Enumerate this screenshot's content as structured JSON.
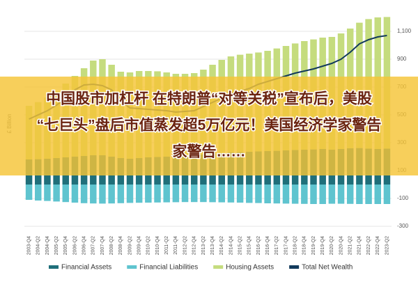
{
  "chart_data": {
    "type": "stacked-bar-line",
    "y_label": "£ Billion",
    "categories": [
      "2003-Q4",
      "2004-Q2",
      "2004-Q4",
      "2005-Q2",
      "2005-Q4",
      "2006-Q2",
      "2006-Q4",
      "2007-Q2",
      "2007-Q4",
      "2008-Q2",
      "2008-Q4",
      "2009-Q2",
      "2009-Q4",
      "2010-Q2",
      "2010-Q4",
      "2011-Q2",
      "2011-Q4",
      "2012-Q2",
      "2012-Q4",
      "2013-Q2",
      "2013-Q4",
      "2014-Q2",
      "2014-Q4",
      "2015-Q2",
      "2015-Q4",
      "2016-Q2",
      "2016-Q4",
      "2017-Q2",
      "2017-Q4",
      "2018-Q2",
      "2018-Q4",
      "2019-Q2",
      "2019-Q4",
      "2020-Q2",
      "2020-Q4",
      "2021-Q2",
      "2021-Q4",
      "2022-Q2",
      "2022-Q4",
      "2023-Q2"
    ],
    "series": [
      {
        "name": "Financial Assets",
        "color": "#1f6f7a",
        "kind": "bar",
        "values": [
          180,
          182,
          185,
          190,
          195,
          200,
          205,
          210,
          210,
          200,
          190,
          185,
          190,
          195,
          198,
          200,
          200,
          205,
          210,
          215,
          220,
          225,
          230,
          232,
          235,
          238,
          240,
          242,
          245,
          248,
          250,
          252,
          255,
          250,
          255,
          260,
          262,
          258,
          255,
          258
        ]
      },
      {
        "name": "Financial Liabilities",
        "color": "#5fc4cf",
        "kind": "bar",
        "values": [
          -110,
          -115,
          -118,
          -122,
          -126,
          -130,
          -134,
          -136,
          -137,
          -136,
          -134,
          -132,
          -131,
          -130,
          -129,
          -128,
          -127,
          -126,
          -126,
          -126,
          -127,
          -128,
          -129,
          -130,
          -132,
          -133,
          -135,
          -136,
          -137,
          -138,
          -139,
          -140,
          -140,
          -138,
          -138,
          -139,
          -140,
          -140,
          -140,
          -140
        ]
      },
      {
        "name": "Housing Assets",
        "color": "#c5dc7e",
        "kind": "bar",
        "values": [
          385,
          410,
          440,
          480,
          530,
          580,
          630,
          680,
          690,
          660,
          620,
          620,
          625,
          620,
          615,
          605,
          595,
          590,
          590,
          610,
          640,
          670,
          690,
          700,
          705,
          710,
          720,
          735,
          750,
          765,
          780,
          790,
          800,
          810,
          830,
          860,
          900,
          930,
          945,
          945
        ]
      },
      {
        "name": "Total Net Wealth",
        "color": "#123a5c",
        "kind": "line",
        "values": [
          470,
          500,
          530,
          570,
          620,
          680,
          715,
          720,
          710,
          680,
          600,
          550,
          545,
          540,
          535,
          530,
          520,
          525,
          530,
          560,
          590,
          620,
          650,
          670,
          690,
          720,
          740,
          760,
          780,
          800,
          815,
          830,
          850,
          870,
          900,
          950,
          1010,
          1040,
          1060,
          1070
        ]
      }
    ],
    "ylim": [
      -350,
      1225
    ],
    "yticks": [
      -300,
      -100,
      100,
      300,
      500,
      700,
      900,
      {
        "value": 1100,
        "label": "1,100"
      }
    ],
    "grid": true
  },
  "overlay": {
    "lines": [
      "中国股市加杠杆 在特朗普“对等关税”宣布后，美股",
      "“七巨头”盘后市值蒸发超5万亿元！美国经济学家警告",
      "家警告……"
    ]
  }
}
